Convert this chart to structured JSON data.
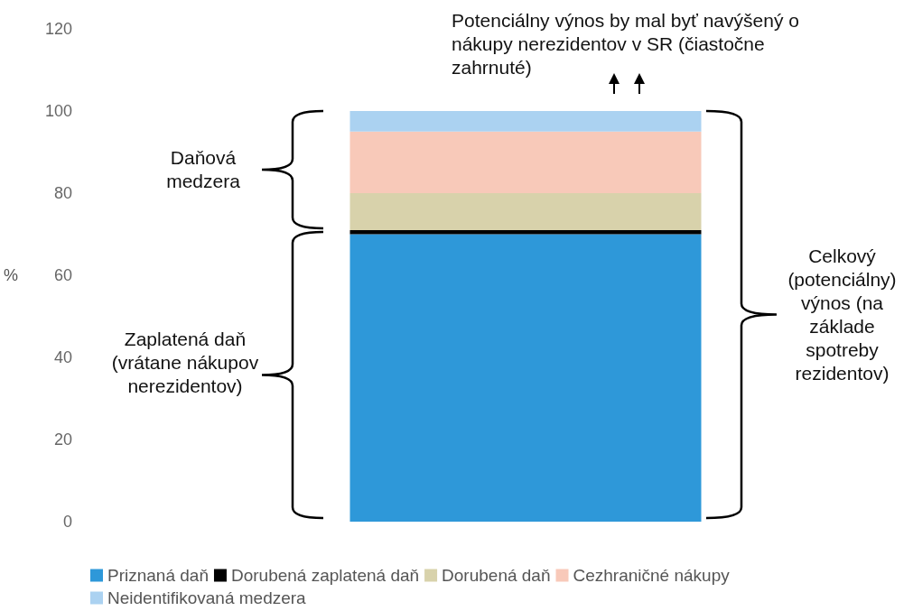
{
  "chart_data": {
    "type": "bar",
    "stacked": true,
    "categories": [
      null
    ],
    "ylabel": "%",
    "ylim": [
      0,
      120
    ],
    "yticks": [
      0,
      20,
      40,
      60,
      80,
      100,
      120
    ],
    "grid": false,
    "legend": "bottom",
    "tick_labels": "y",
    "series": [
      {
        "name": "Priznaná daň",
        "color": "#2e98d9",
        "values": [
          70
        ]
      },
      {
        "name": "Dorubená zaplatená daň",
        "color": "#000000",
        "values": [
          1
        ]
      },
      {
        "name": "Dorubená daň",
        "color": "#d8d2ab",
        "values": [
          9
        ]
      },
      {
        "name": "Cezhraničné nákupy",
        "color": "#f8c9b9",
        "values": [
          15
        ]
      },
      {
        "name": "Neidentifikovaná medzera",
        "color": "#abd2f1",
        "values": [
          5
        ]
      }
    ],
    "annotations": [
      "Potenciálny výnos by mal byť navýšený o nákupy nerezidentov v SR (čiastočne zahrnuté)",
      "Daňová medzera",
      "Zaplatená daň (vrátane nákupov nerezidentov)",
      "Celkový (potenciálny) výnos (na základe spotreby rezidentov)"
    ]
  }
}
